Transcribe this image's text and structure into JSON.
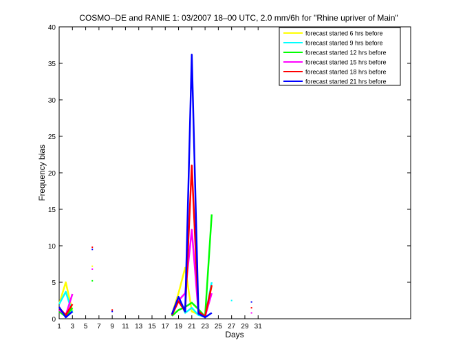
{
  "chart_data": {
    "type": "line",
    "title": "COSMO–DE and RANIE 1: 03/2007 18–00 UTC, 2.0 mm/6h for \"Rhine upriver of Main\"",
    "xlabel": "Days",
    "ylabel": "Frequency bias",
    "xlim": [
      1,
      54
    ],
    "ylim": [
      0,
      40
    ],
    "xticks": [
      "1",
      "3",
      "5",
      "7",
      "9",
      "11",
      "13",
      "15",
      "17",
      "19",
      "21",
      "23",
      "25",
      "27",
      "29",
      "31"
    ],
    "yticks": [
      "0",
      "5",
      "10",
      "15",
      "20",
      "25",
      "30",
      "35",
      "40"
    ],
    "legend_position": "top-right",
    "series": [
      {
        "name": "forecast started 6 hrs before",
        "color": "#ffff00",
        "x": [
          1,
          2,
          3,
          18,
          19,
          20,
          21,
          22,
          23,
          24
        ],
        "y": [
          2.0,
          5.0,
          1.0,
          0.6,
          3.5,
          7.0,
          1.0,
          0.6,
          0.4,
          4.5
        ],
        "dots": [
          [
            6,
            7.2
          ]
        ]
      },
      {
        "name": "forecast started 9 hrs before",
        "color": "#00ffff",
        "x": [
          1,
          2,
          3,
          18,
          19,
          20,
          21,
          22,
          23,
          24
        ],
        "y": [
          2.0,
          3.7,
          0.8,
          0.4,
          2.8,
          0.8,
          1.5,
          0.5,
          0.3,
          5.0
        ],
        "dots": [
          [
            27,
            2.5
          ]
        ]
      },
      {
        "name": "forecast started 12 hrs before",
        "color": "#00ff00",
        "x": [
          1,
          2,
          3,
          18,
          19,
          20,
          21,
          22,
          23,
          24
        ],
        "y": [
          1.0,
          0.3,
          1.5,
          0.4,
          1.2,
          1.6,
          2.2,
          1.3,
          0.3,
          14.3
        ],
        "dots": [
          [
            6,
            5.2
          ]
        ]
      },
      {
        "name": "forecast started 15 hrs before",
        "color": "#ff00ff",
        "x": [
          1,
          2,
          3,
          18,
          19,
          20,
          21,
          22,
          23,
          24
        ],
        "y": [
          1.2,
          0.5,
          3.4,
          0.5,
          2.5,
          3.5,
          12.2,
          0.8,
          0.3,
          3.5
        ],
        "dots": [
          [
            6,
            6.8
          ],
          [
            30,
            0.8
          ]
        ]
      },
      {
        "name": "forecast started 18 hrs before",
        "color": "#ff0000",
        "x": [
          1,
          2,
          3,
          18,
          19,
          20,
          21,
          22,
          23,
          24
        ],
        "y": [
          1.5,
          0.5,
          2.0,
          0.5,
          2.4,
          1.0,
          21.0,
          1.0,
          0.3,
          4.6
        ],
        "dots": [
          [
            6,
            9.8
          ],
          [
            9,
            1.2
          ],
          [
            30,
            1.5
          ]
        ]
      },
      {
        "name": "forecast started 21 hrs before",
        "color": "#0000ff",
        "x": [
          1,
          2,
          3,
          18,
          19,
          20,
          21,
          22,
          23,
          24
        ],
        "y": [
          1.6,
          0.2,
          1.0,
          0.6,
          3.0,
          1.0,
          36.2,
          0.7,
          0.2,
          0.8
        ],
        "dots": [
          [
            6,
            9.5
          ],
          [
            9,
            1.0
          ],
          [
            30,
            2.3
          ]
        ]
      }
    ]
  }
}
